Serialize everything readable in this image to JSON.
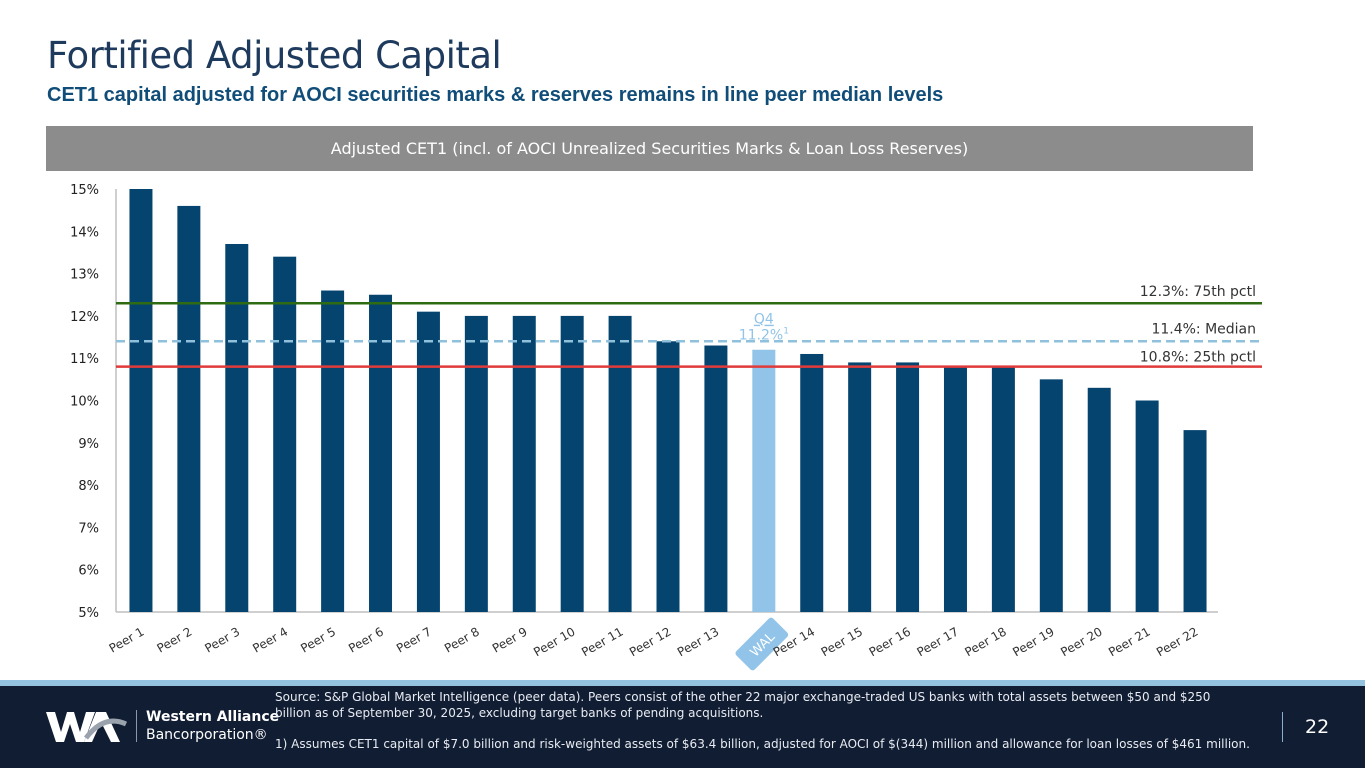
{
  "header": {
    "title": "Fortified Adjusted Capital",
    "subtitle": "CET1 capital adjusted for AOCI securities marks & reserves remains in line peer median levels"
  },
  "chart_data": {
    "type": "bar",
    "title": "Adjusted CET1 (incl. of AOCI Unrealized Securities Marks & Loan Loss Reserves)",
    "categories": [
      "Peer 1",
      "Peer 2",
      "Peer 3",
      "Peer 4",
      "Peer 5",
      "Peer 6",
      "Peer 7",
      "Peer 8",
      "Peer 9",
      "Peer 10",
      "Peer 11",
      "Peer 12",
      "Peer 13",
      "WAL",
      "Peer 14",
      "Peer 15",
      "Peer 16",
      "Peer 17",
      "Peer 18",
      "Peer 19",
      "Peer 20",
      "Peer 21",
      "Peer 22"
    ],
    "values": [
      15.0,
      14.6,
      13.7,
      13.4,
      12.6,
      12.5,
      12.1,
      12.0,
      12.0,
      12.0,
      12.0,
      11.4,
      11.3,
      11.2,
      11.1,
      10.9,
      10.9,
      10.8,
      10.8,
      10.5,
      10.3,
      10.0,
      9.3
    ],
    "highlight_category": "WAL",
    "highlight_label_line1": "Q4",
    "highlight_label_line2": "11.2%",
    "highlight_footnote_mark": "1",
    "ylim": [
      5,
      15
    ],
    "yticks": [
      5,
      6,
      7,
      8,
      9,
      10,
      11,
      12,
      13,
      14,
      15
    ],
    "ytick_format": "%",
    "xlabel": "",
    "ylabel": "",
    "grid": false,
    "reference_lines": [
      {
        "name": "75th pctl",
        "value": 12.3,
        "label": "12.3%: 75th pctl",
        "color": "#2e6b12",
        "style": "solid"
      },
      {
        "name": "Median",
        "value": 11.4,
        "label": "11.4%: Median",
        "color": "#8fc1dc",
        "style": "dashed"
      },
      {
        "name": "25th pctl",
        "value": 10.8,
        "label": "10.8%: 25th pctl",
        "color": "#e03a3a",
        "style": "solid"
      }
    ],
    "colors": {
      "bar": "#05446f",
      "highlight": "#91c4e8",
      "axis": "#bfbfbf",
      "tick_text": "#222222",
      "xlabel_text": "#333333"
    }
  },
  "footer": {
    "logo_name_line1": "Western Alliance",
    "logo_name_line2": "Bancorporation®",
    "source": "Source: S&P Global Market Intelligence (peer data). Peers consist of the other 22 major exchange-traded US banks with total assets between $50 and $250 billion as of September 30, 2025, excluding target banks of pending acquisitions.",
    "note": "1)    Assumes CET1 capital of $7.0 billion and risk-weighted assets of $63.4 billion, adjusted for AOCI of $(344) million and allowance for loan losses of $461 million.",
    "page_number": "22"
  }
}
